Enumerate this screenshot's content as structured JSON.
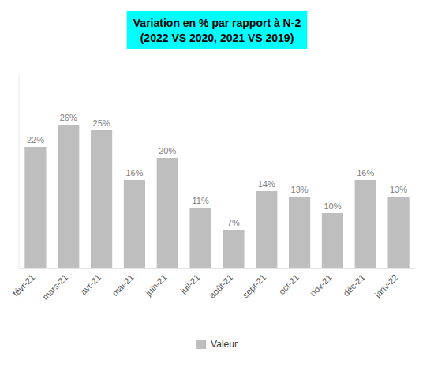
{
  "chart_data": {
    "type": "bar",
    "title": "Variation en % par rapport à N-2",
    "subtitle": "(2022 VS 2020, 2021 VS 2019)",
    "categories": [
      "févr-21",
      "mars-21",
      "avr-21",
      "mai-21",
      "juin-21",
      "juil-21",
      "août-21",
      "sept-21",
      "oct-21",
      "nov-21",
      "déc-21",
      "janv-22"
    ],
    "series": [
      {
        "name": "Valeur",
        "color": "#BEBEBE",
        "values": [
          22,
          26,
          25,
          16,
          20,
          11,
          7,
          14,
          13,
          10,
          16,
          13
        ],
        "value_labels": [
          "22%",
          "26%",
          "25%",
          "16%",
          "20%",
          "11%",
          "7%",
          "14%",
          "13%",
          "10%",
          "16%",
          "13%"
        ]
      }
    ],
    "ylim": [
      0,
      35
    ],
    "data_labels": true,
    "tick_labels": "x",
    "grid": false,
    "legend": "bottom"
  }
}
